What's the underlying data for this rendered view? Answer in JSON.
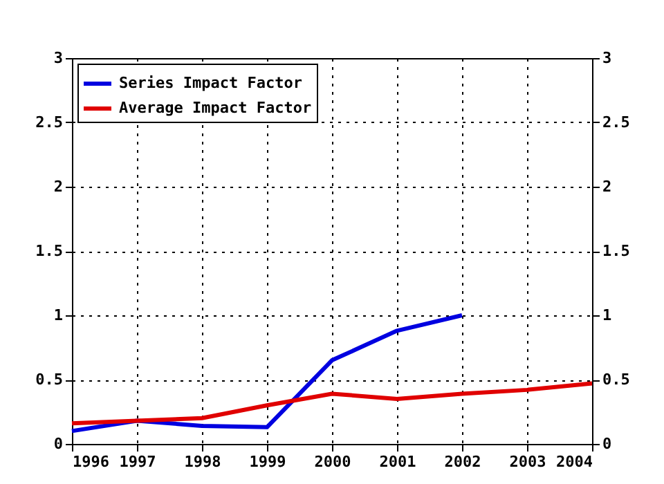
{
  "chart_data": {
    "type": "line",
    "x": [
      1996,
      1997,
      1998,
      1999,
      2000,
      2001,
      2002,
      2003,
      2004
    ],
    "series": [
      {
        "name": "Series Impact Factor",
        "color": "#0000e0",
        "values": [
          0.1,
          0.18,
          0.14,
          0.13,
          0.65,
          0.88,
          1.0,
          null,
          null
        ]
      },
      {
        "name": "Average Impact Factor",
        "color": "#e00000",
        "values": [
          0.16,
          0.18,
          0.2,
          0.3,
          0.39,
          0.35,
          0.39,
          0.42,
          0.47
        ]
      }
    ],
    "xlim": [
      1996,
      2004
    ],
    "xticks": [
      1996,
      1997,
      1998,
      1999,
      2000,
      2001,
      2002,
      2003,
      2004
    ],
    "ylim": [
      0,
      3
    ],
    "yticks": [
      0,
      0.5,
      1,
      1.5,
      2,
      2.5,
      3
    ],
    "y2lim": [
      0,
      3
    ],
    "y2ticks": [
      0,
      0.5,
      1,
      1.5,
      2,
      2.5,
      3
    ],
    "grid": true,
    "legend": "top left",
    "line_style": "solid"
  }
}
